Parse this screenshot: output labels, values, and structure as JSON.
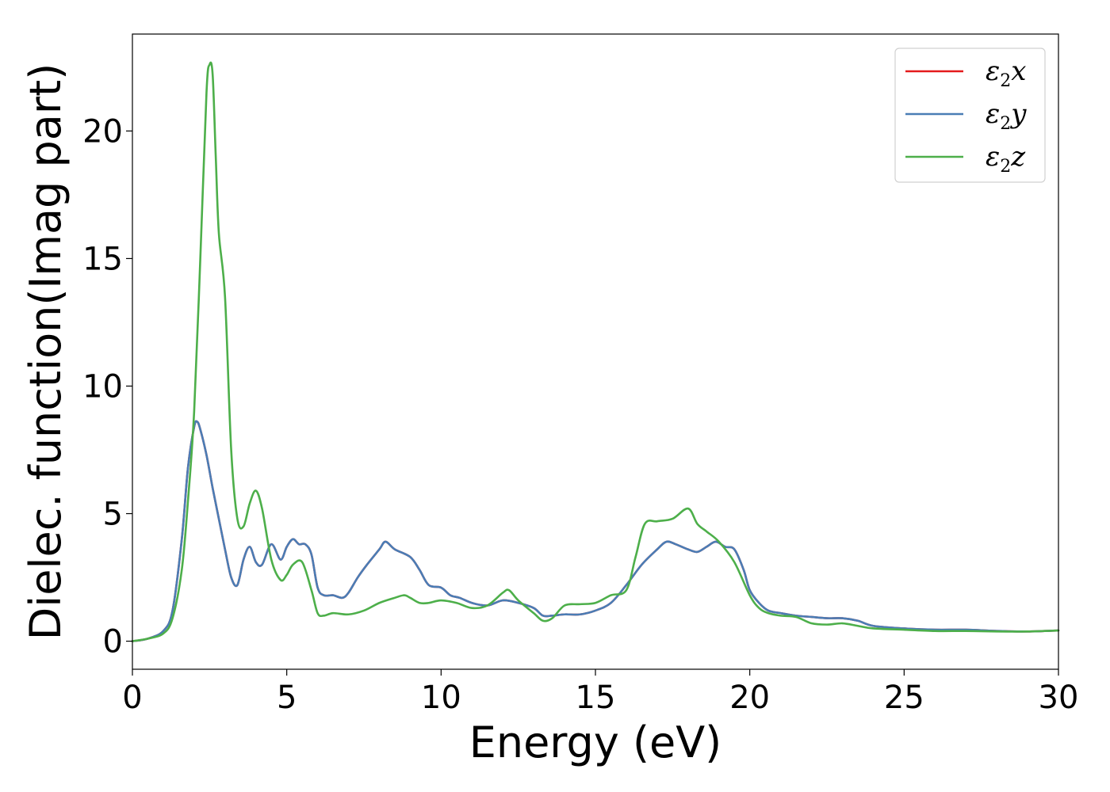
{
  "chart_data": {
    "type": "line",
    "title": "",
    "xlabel": "Energy (eV)",
    "ylabel": "Dielec. function(Imag part)",
    "xlim": [
      0,
      30
    ],
    "ylim": [
      -1.1,
      23.8
    ],
    "xticks": [
      0,
      5,
      10,
      15,
      20,
      25,
      30
    ],
    "yticks": [
      0,
      5,
      10,
      15,
      20
    ],
    "grid": false,
    "legend_position": "top-right",
    "series": [
      {
        "name": "ε2x",
        "legend_main": "ε",
        "legend_sub": "2",
        "legend_var": "x",
        "color": "#e41a1c",
        "x": [
          0,
          0.5,
          1.0,
          1.3,
          1.6,
          1.8,
          2.0,
          2.1,
          2.2,
          2.4,
          2.6,
          2.8,
          3.0,
          3.2,
          3.4,
          3.6,
          3.8,
          4.0,
          4.2,
          4.5,
          4.8,
          5.0,
          5.2,
          5.4,
          5.6,
          5.8,
          6.0,
          6.2,
          6.5,
          6.8,
          7.0,
          7.3,
          7.6,
          8.0,
          8.2,
          8.5,
          9.0,
          9.3,
          9.6,
          10.0,
          10.3,
          10.6,
          11.0,
          11.5,
          12.0,
          12.5,
          13.0,
          13.3,
          13.6,
          14.0,
          14.5,
          15.0,
          15.5,
          16.0,
          16.5,
          17.0,
          17.3,
          17.6,
          18.0,
          18.3,
          18.6,
          18.9,
          19.2,
          19.5,
          19.8,
          20.0,
          20.3,
          20.6,
          21.0,
          21.5,
          22.0,
          22.5,
          23.0,
          23.5,
          24.0,
          25.0,
          26.0,
          27.0,
          28.0,
          29.0,
          30.0
        ],
        "values": [
          0.0,
          0.1,
          0.4,
          1.2,
          4.0,
          6.8,
          8.4,
          8.6,
          8.3,
          7.3,
          6.0,
          4.8,
          3.6,
          2.5,
          2.2,
          3.2,
          3.7,
          3.1,
          3.0,
          3.8,
          3.2,
          3.7,
          4.0,
          3.8,
          3.8,
          3.4,
          2.1,
          1.8,
          1.8,
          1.7,
          1.9,
          2.5,
          3.0,
          3.6,
          3.9,
          3.6,
          3.3,
          2.8,
          2.2,
          2.1,
          1.8,
          1.7,
          1.5,
          1.4,
          1.6,
          1.5,
          1.3,
          1.0,
          1.0,
          1.05,
          1.05,
          1.2,
          1.5,
          2.2,
          3.0,
          3.6,
          3.9,
          3.8,
          3.6,
          3.5,
          3.7,
          3.9,
          3.7,
          3.6,
          2.8,
          2.0,
          1.5,
          1.2,
          1.1,
          1.0,
          0.95,
          0.9,
          0.9,
          0.8,
          0.6,
          0.5,
          0.45,
          0.45,
          0.4,
          0.38,
          0.42
        ]
      },
      {
        "name": "ε2y",
        "legend_main": "ε",
        "legend_sub": "2",
        "legend_var": "y",
        "color": "#4a7db5",
        "x": [
          0,
          0.5,
          1.0,
          1.3,
          1.6,
          1.8,
          2.0,
          2.1,
          2.2,
          2.4,
          2.6,
          2.8,
          3.0,
          3.2,
          3.4,
          3.6,
          3.8,
          4.0,
          4.2,
          4.5,
          4.8,
          5.0,
          5.2,
          5.4,
          5.6,
          5.8,
          6.0,
          6.2,
          6.5,
          6.8,
          7.0,
          7.3,
          7.6,
          8.0,
          8.2,
          8.5,
          9.0,
          9.3,
          9.6,
          10.0,
          10.3,
          10.6,
          11.0,
          11.5,
          12.0,
          12.5,
          13.0,
          13.3,
          13.6,
          14.0,
          14.5,
          15.0,
          15.5,
          16.0,
          16.5,
          17.0,
          17.3,
          17.6,
          18.0,
          18.3,
          18.6,
          18.9,
          19.2,
          19.5,
          19.8,
          20.0,
          20.3,
          20.6,
          21.0,
          21.5,
          22.0,
          22.5,
          23.0,
          23.5,
          24.0,
          25.0,
          26.0,
          27.0,
          28.0,
          29.0,
          30.0
        ],
        "values": [
          0.0,
          0.1,
          0.4,
          1.2,
          4.0,
          6.8,
          8.4,
          8.6,
          8.3,
          7.3,
          6.0,
          4.8,
          3.6,
          2.5,
          2.2,
          3.2,
          3.7,
          3.1,
          3.0,
          3.8,
          3.2,
          3.7,
          4.0,
          3.8,
          3.8,
          3.4,
          2.1,
          1.8,
          1.8,
          1.7,
          1.9,
          2.5,
          3.0,
          3.6,
          3.9,
          3.6,
          3.3,
          2.8,
          2.2,
          2.1,
          1.8,
          1.7,
          1.5,
          1.4,
          1.6,
          1.5,
          1.3,
          1.0,
          1.0,
          1.05,
          1.05,
          1.2,
          1.5,
          2.2,
          3.0,
          3.6,
          3.9,
          3.8,
          3.6,
          3.5,
          3.7,
          3.9,
          3.7,
          3.6,
          2.8,
          2.0,
          1.5,
          1.2,
          1.1,
          1.0,
          0.95,
          0.9,
          0.9,
          0.8,
          0.6,
          0.5,
          0.45,
          0.45,
          0.4,
          0.38,
          0.42
        ]
      },
      {
        "name": "ε2z",
        "legend_main": "ε",
        "legend_sub": "2",
        "legend_var": "z",
        "color": "#4daf4a",
        "x": [
          0,
          0.5,
          1.0,
          1.3,
          1.6,
          1.8,
          2.0,
          2.2,
          2.4,
          2.5,
          2.6,
          2.7,
          2.8,
          3.0,
          3.2,
          3.4,
          3.6,
          3.8,
          4.0,
          4.2,
          4.5,
          4.8,
          5.0,
          5.2,
          5.5,
          5.8,
          6.0,
          6.2,
          6.5,
          7.0,
          7.5,
          8.0,
          8.5,
          8.8,
          9.0,
          9.3,
          9.6,
          10.0,
          10.5,
          11.0,
          11.5,
          12.0,
          12.2,
          12.5,
          13.0,
          13.3,
          13.6,
          14.0,
          14.5,
          15.0,
          15.5,
          16.0,
          16.3,
          16.6,
          17.0,
          17.5,
          18.0,
          18.3,
          18.6,
          19.0,
          19.5,
          20.0,
          20.3,
          20.6,
          21.0,
          21.5,
          22.0,
          22.5,
          23.0,
          23.5,
          24.0,
          25.0,
          26.0,
          27.0,
          28.0,
          29.0,
          30.0
        ],
        "values": [
          0.0,
          0.1,
          0.3,
          0.9,
          2.8,
          5.5,
          9.0,
          15.0,
          21.5,
          22.6,
          22.2,
          19.0,
          16.0,
          13.5,
          7.5,
          4.8,
          4.5,
          5.4,
          5.9,
          5.2,
          3.2,
          2.4,
          2.6,
          3.0,
          3.1,
          2.0,
          1.1,
          1.0,
          1.1,
          1.05,
          1.2,
          1.5,
          1.7,
          1.8,
          1.7,
          1.5,
          1.5,
          1.6,
          1.5,
          1.3,
          1.4,
          1.9,
          2.0,
          1.6,
          1.1,
          0.8,
          0.9,
          1.4,
          1.45,
          1.5,
          1.8,
          2.0,
          3.3,
          4.6,
          4.7,
          4.8,
          5.2,
          4.6,
          4.3,
          3.9,
          3.1,
          1.8,
          1.3,
          1.1,
          1.0,
          0.95,
          0.7,
          0.65,
          0.7,
          0.6,
          0.5,
          0.45,
          0.4,
          0.4,
          0.38,
          0.38,
          0.42
        ]
      }
    ]
  }
}
